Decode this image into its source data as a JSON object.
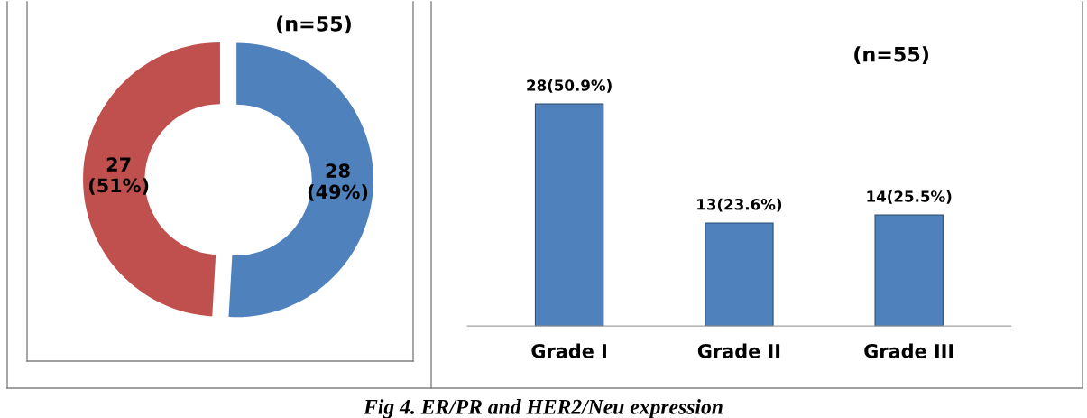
{
  "chart_data": [
    {
      "type": "donut",
      "categories": [
        null,
        null
      ],
      "values": [
        28,
        27
      ],
      "colors": [
        "#4f81bd",
        "#c0504d"
      ],
      "value_labels": [
        "28\n(49%)",
        "27\n(51%)"
      ],
      "annotations": [
        "(n=55)"
      ]
    },
    {
      "type": "bar",
      "categories": [
        "Grade I",
        "Grade II",
        "Grade III"
      ],
      "values": [
        28,
        13,
        14
      ],
      "color": "#4f81bd",
      "value_labels": [
        "28(50.9%)",
        "13(23.6%)",
        "14(25.5%)"
      ],
      "annotations": [
        "(n=55)",
        "Fig 4. ER/PR and HER2/Neu expression"
      ]
    }
  ]
}
